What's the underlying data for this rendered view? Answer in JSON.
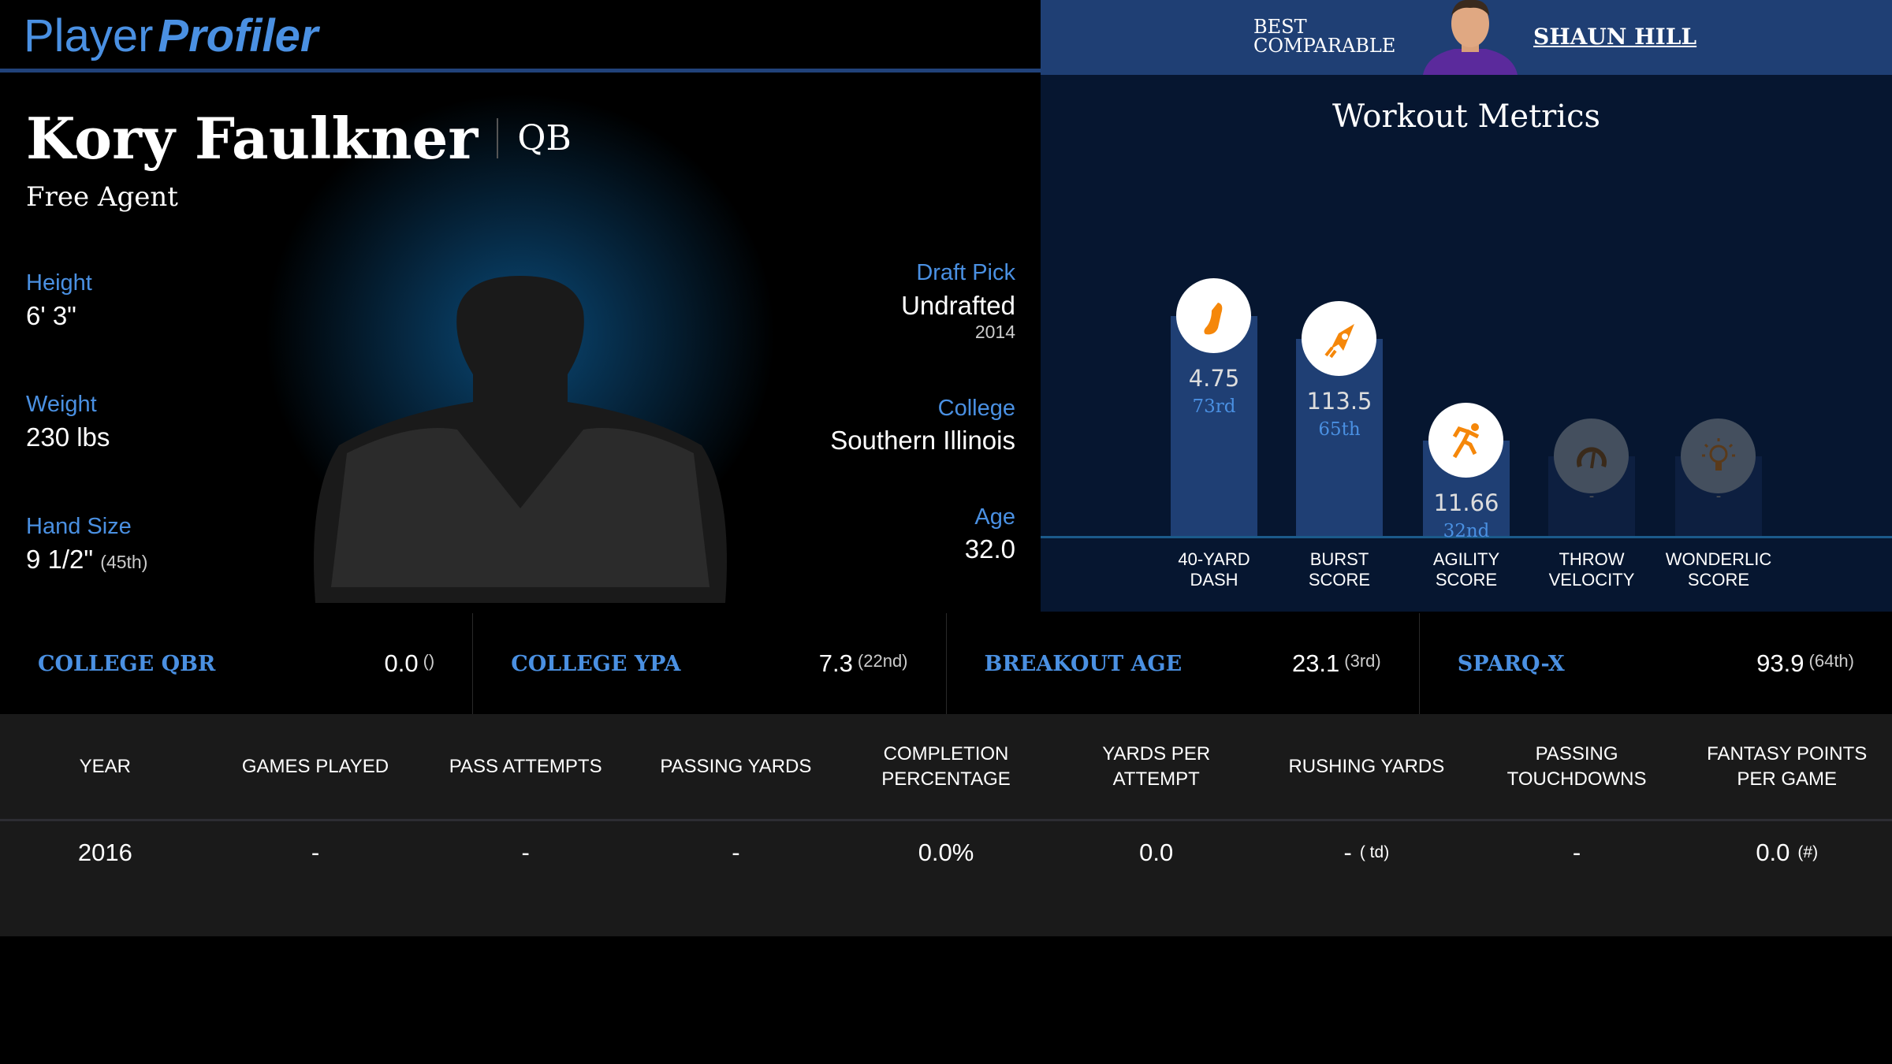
{
  "header": {
    "logo_a": "Player",
    "logo_b": "Profiler",
    "best_comparable_label_1": "BEST",
    "best_comparable_label_2": "COMPARABLE",
    "best_comparable_name": "SHAUN HILL"
  },
  "player": {
    "name": "Kory Faulkner",
    "position": "QB",
    "team": "Free Agent",
    "height_label": "Height",
    "height": "6' 3\"",
    "weight_label": "Weight",
    "weight": "230 lbs",
    "hand_label": "Hand Size",
    "hand": "9 1/2\"",
    "hand_pct": "(45th)",
    "draft_label": "Draft Pick",
    "draft": "Undrafted",
    "draft_year": "2014",
    "college_label": "College",
    "college": "Southern Illinois",
    "age_label": "Age",
    "age": "32.0"
  },
  "workout": {
    "title": "Workout Metrics",
    "metrics": [
      {
        "label1": "40-YARD",
        "label2": "DASH",
        "value": "4.75",
        "pct": "73rd",
        "icon": "shoe-icon"
      },
      {
        "label1": "BURST",
        "label2": "SCORE",
        "value": "113.5",
        "pct": "65th",
        "icon": "rocket-icon"
      },
      {
        "label1": "AGILITY",
        "label2": "SCORE",
        "value": "11.66",
        "pct": "32nd",
        "icon": "runner-icon"
      },
      {
        "label1": "THROW",
        "label2": "VELOCITY",
        "value": "-",
        "pct": "",
        "icon": "speedometer-icon"
      },
      {
        "label1": "WONDERLIC",
        "label2": "SCORE",
        "value": "-",
        "pct": "",
        "icon": "lightbulb-icon"
      }
    ]
  },
  "stats": [
    {
      "label": "COLLEGE QBR",
      "value": "0.0",
      "pct": "()"
    },
    {
      "label": "COLLEGE YPA",
      "value": "7.3",
      "pct": "(22nd)"
    },
    {
      "label": "BREAKOUT AGE",
      "value": "23.1",
      "pct": "(3rd)"
    },
    {
      "label": "SPARQ-X",
      "value": "93.9",
      "pct": "(64th)"
    }
  ],
  "table": {
    "headers": [
      "YEAR",
      "GAMES PLAYED",
      "PASS ATTEMPTS",
      "PASSING YARDS",
      "COMPLETION PERCENTAGE",
      "YARDS PER ATTEMPT",
      "RUSHING YARDS",
      "PASSING TOUCHDOWNS",
      "FANTASY POINTS PER GAME"
    ],
    "rows": [
      [
        "2016",
        "-",
        "-",
        "-",
        "0.0%",
        "0.0",
        "-",
        "-",
        "0.0"
      ]
    ],
    "rushing_extra": "( td)",
    "fantasy_extra": "(#)"
  },
  "colors": {
    "accent": "#4a90e2",
    "header_blue": "#1f3f74",
    "icon_orange": "#f5870a"
  }
}
